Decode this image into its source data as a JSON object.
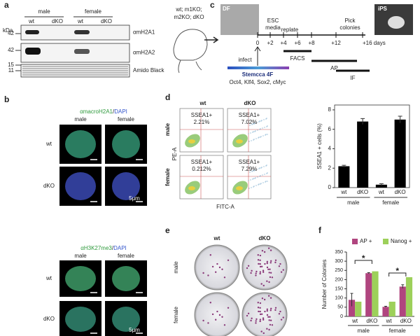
{
  "panels": {
    "a": {
      "label": "a",
      "kda": "kDa",
      "groups": [
        "male",
        "female"
      ],
      "lanes": [
        "wt",
        "dKO",
        "wt",
        "dKO"
      ],
      "markers": [
        "42",
        "42",
        "15",
        "11"
      ],
      "blots": [
        "αmH2A1",
        "αmH2A2",
        "Amido Black"
      ]
    },
    "b": {
      "label": "b",
      "stains": [
        {
          "antibody": "αmacroH2A1",
          "sep": "/",
          "dapi": "DAPI",
          "columns": [
            "male",
            "female"
          ],
          "rows": [
            "wt",
            "dKO"
          ],
          "scale": "5μm"
        },
        {
          "antibody": "αH3K27me3",
          "sep": "/",
          "dapi": "DAPI",
          "columns": [
            "male",
            "female"
          ],
          "rows": [
            "wt",
            "dKO"
          ],
          "scale": "5μm"
        }
      ]
    },
    "c": {
      "label": "c",
      "mice": [
        "wt; m1KO;",
        "m2KO; dKO"
      ],
      "feeder": "DF",
      "esc": [
        "ESC",
        "media"
      ],
      "replate": "replate",
      "pick": [
        "Pick",
        "colonies"
      ],
      "ips": "iPS",
      "days": [
        "0",
        "+2",
        "+4",
        "+6",
        "+8",
        "+12",
        "+16 days"
      ],
      "infect": "infect",
      "vector": "Stemcca 4F",
      "factors": "Oct4, Klf4, Sox2, cMyc",
      "assays": [
        "FACS",
        "AP",
        "IF"
      ]
    },
    "d": {
      "label": "d",
      "columns": [
        "wt",
        "dKO"
      ],
      "rows": [
        "male",
        "female"
      ],
      "gate": "SSEA1+",
      "percents": [
        [
          "2.21%",
          "7.02%"
        ],
        [
          "0.212%",
          "7.29%"
        ]
      ],
      "y_axis": "PE-A",
      "x_axis": "FITC-A"
    },
    "e": {
      "label": "e",
      "columns": [
        "wt",
        "dKO"
      ],
      "rows": [
        "male",
        "female"
      ]
    },
    "f": {
      "label": "f"
    }
  },
  "chart_data": [
    {
      "type": "bar",
      "ylabel": "SSEA1 + cells (%)",
      "categories": [
        "wt",
        "dKO",
        "wt",
        "dKO"
      ],
      "groups": [
        "male",
        "female"
      ],
      "values": [
        2.2,
        6.8,
        0.3,
        7.0
      ],
      "errors": [
        0.1,
        0.3,
        0.1,
        0.35
      ],
      "color": "#000000",
      "ylim": [
        0,
        8.5
      ],
      "yticks": [
        0,
        2,
        4,
        6,
        8
      ]
    },
    {
      "type": "grouped_bar",
      "ylabel": "Number of Colonies",
      "categories": [
        "wt",
        "dKO",
        "wt",
        "dKO"
      ],
      "groups": [
        "male",
        "female"
      ],
      "series": [
        {
          "name": "AP +",
          "color": "#b0457f",
          "values": [
            90,
            235,
            52,
            162
          ],
          "errors": [
            35,
            3,
            3,
            10
          ]
        },
        {
          "name": "Nanog +",
          "color": "#9dd05a",
          "values": [
            80,
            245,
            80,
            213
          ]
        }
      ],
      "ylim": [
        0,
        350
      ],
      "yticks": [
        0,
        50,
        100,
        150,
        200,
        250,
        300,
        350
      ],
      "annotations": [
        "*",
        "*"
      ],
      "legend": "top"
    }
  ]
}
